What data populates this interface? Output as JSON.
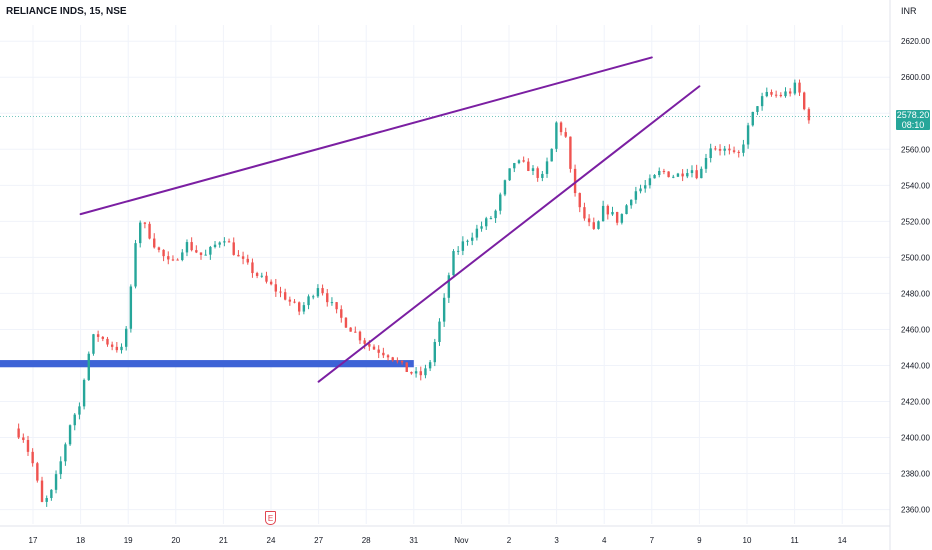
{
  "header": {
    "symbol_line": "RELIANCE INDS, 15, NSE",
    "currency": "INR"
  },
  "price_marker": {
    "price": "2578.20",
    "countdown": "08:10",
    "color": "#26a69a"
  },
  "event_marker": {
    "label": "E",
    "icon": "earnings-icon",
    "color": "#e0454f"
  },
  "colors": {
    "up": "#26a69a",
    "down": "#ef5350",
    "trendline": "#7b1fa2",
    "support_zone": "#3d63d6",
    "grid": "#f0f3fa"
  },
  "chart_data": {
    "type": "candlestick",
    "x_ticks": [
      "17",
      "18",
      "19",
      "20",
      "21",
      "24",
      "27",
      "28",
      "31",
      "Nov",
      "2",
      "3",
      "4",
      "7",
      "9",
      "10",
      "11",
      "14"
    ],
    "y_ticks": [
      "2620.00",
      "2600.00",
      "2580.00",
      "2560.00",
      "2540.00",
      "2520.00",
      "2500.00",
      "2480.00",
      "2460.00",
      "2440.00",
      "2420.00",
      "2400.00",
      "2380.00",
      "2360.00"
    ],
    "ylim": [
      2352,
      2629
    ],
    "last_price": 2578.2,
    "support_zone": {
      "from": 2439,
      "to": 2443
    },
    "trendlines": [
      {
        "x": [
          "18",
          "7"
        ],
        "y": [
          2524,
          2611
        ]
      },
      {
        "x": [
          "27",
          "9"
        ],
        "y": [
          2431,
          2595
        ]
      }
    ],
    "close_path": [
      [
        16.6,
        2405
      ],
      [
        16.8,
        2400
      ],
      [
        17.0,
        2385
      ],
      [
        17.2,
        2362
      ],
      [
        17.4,
        2370
      ],
      [
        17.6,
        2388
      ],
      [
        17.8,
        2410
      ],
      [
        18.0,
        2418
      ],
      [
        18.1,
        2440
      ],
      [
        18.3,
        2458
      ],
      [
        18.6,
        2452
      ],
      [
        18.9,
        2448
      ],
      [
        19.05,
        2480
      ],
      [
        19.2,
        2522
      ],
      [
        19.4,
        2515
      ],
      [
        19.6,
        2505
      ],
      [
        19.9,
        2495
      ],
      [
        20.2,
        2508
      ],
      [
        20.6,
        2500
      ],
      [
        21.0,
        2512
      ],
      [
        21.3,
        2500
      ],
      [
        21.8,
        2488
      ],
      [
        22.3,
        2478
      ],
      [
        22.6,
        2470
      ],
      [
        23.0,
        2485
      ],
      [
        23.4,
        2468
      ],
      [
        23.7,
        2460
      ],
      [
        24.1,
        2450
      ],
      [
        24.5,
        2446
      ],
      [
        24.8,
        2438
      ],
      [
        25.1,
        2434
      ],
      [
        25.3,
        2438
      ],
      [
        25.6,
        2470
      ],
      [
        25.8,
        2500
      ],
      [
        26.1,
        2510
      ],
      [
        26.4,
        2517
      ],
      [
        26.7,
        2524
      ],
      [
        26.9,
        2540
      ],
      [
        27.1,
        2553
      ],
      [
        27.4,
        2550
      ],
      [
        27.7,
        2544
      ],
      [
        27.9,
        2560
      ],
      [
        28.0,
        2575
      ],
      [
        28.2,
        2566
      ],
      [
        28.3,
        2545
      ],
      [
        28.5,
        2525
      ],
      [
        28.8,
        2513
      ],
      [
        29.0,
        2528
      ],
      [
        29.3,
        2520
      ],
      [
        29.6,
        2536
      ],
      [
        29.9,
        2540
      ],
      [
        30.2,
        2548
      ],
      [
        30.5,
        2545
      ],
      [
        30.8,
        2550
      ],
      [
        31.0,
        2545
      ],
      [
        31.2,
        2562
      ],
      [
        31.5,
        2560
      ],
      [
        31.8,
        2555
      ],
      [
        32.0,
        2570
      ],
      [
        32.2,
        2585
      ],
      [
        32.4,
        2590
      ],
      [
        32.7,
        2590
      ],
      [
        32.9,
        2592
      ],
      [
        33.05,
        2596
      ],
      [
        33.2,
        2582
      ],
      [
        33.3,
        2578
      ]
    ]
  }
}
